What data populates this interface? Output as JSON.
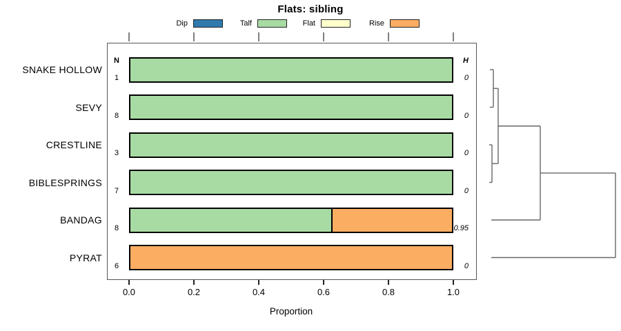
{
  "chart_data": {
    "type": "bar",
    "orientation": "horizontal-stacked",
    "title": "Flats: sibling",
    "xlabel": "Proportion",
    "xlim": [
      0,
      1
    ],
    "x_ticks": [
      "0.0",
      "0.2",
      "0.4",
      "0.6",
      "0.8",
      "1.0"
    ],
    "x_tick_values": [
      0,
      0.2,
      0.4,
      0.6,
      0.8,
      1.0
    ],
    "columns": {
      "left_header": "N",
      "right_header": "H"
    },
    "legend": [
      {
        "label": "Dip",
        "color": "#2f79ad"
      },
      {
        "label": "Talf",
        "color": "#a8dba3"
      },
      {
        "label": "Flat",
        "color": "#ffffcc"
      },
      {
        "label": "Rise",
        "color": "#fbad62"
      }
    ],
    "rows": [
      {
        "label": "SNAKE HOLLOW",
        "n": "1",
        "h": "0",
        "segments": [
          {
            "category": "Talf",
            "value": 1.0
          }
        ]
      },
      {
        "label": "SEVY",
        "n": "8",
        "h": "0",
        "segments": [
          {
            "category": "Talf",
            "value": 1.0
          }
        ]
      },
      {
        "label": "CRESTLINE",
        "n": "3",
        "h": "0",
        "segments": [
          {
            "category": "Talf",
            "value": 1.0
          }
        ]
      },
      {
        "label": "BIBLESPRINGS",
        "n": "7",
        "h": "0",
        "segments": [
          {
            "category": "Talf",
            "value": 1.0
          }
        ]
      },
      {
        "label": "BANDAG",
        "n": "8",
        "h": "0.95",
        "segments": [
          {
            "category": "Talf",
            "value": 0.625
          },
          {
            "category": "Rise",
            "value": 0.375
          }
        ]
      },
      {
        "label": "PYRAT",
        "n": "6",
        "h": "0",
        "segments": [
          {
            "category": "Rise",
            "value": 1.0
          }
        ]
      }
    ],
    "dendrogram": {
      "structure": "((((SNAKE HOLLOW,SEVY),(CRESTLINE,BIBLESPRINGS)),BANDAG),PYRAT)",
      "line_color": "#666666",
      "segments": [
        [
          710,
          101,
          715,
          101
        ],
        [
          710,
          155.5,
          715,
          155.5
        ],
        [
          715,
          101,
          715,
          155.5
        ],
        [
          715,
          128.25,
          722,
          128.25
        ],
        [
          709,
          210,
          713,
          210
        ],
        [
          709,
          264.5,
          713,
          264.5
        ],
        [
          713,
          210,
          713,
          264.5
        ],
        [
          713,
          237.25,
          722,
          237.25
        ],
        [
          722,
          128.25,
          722,
          237.25
        ],
        [
          722,
          182.75,
          783,
          182.75
        ],
        [
          712,
          319,
          783,
          319
        ],
        [
          783,
          182.75,
          783,
          319
        ],
        [
          783,
          250.9,
          892,
          250.9
        ],
        [
          712,
          373.5,
          892,
          373.5
        ],
        [
          892,
          250.9,
          892,
          373.5
        ]
      ]
    }
  }
}
